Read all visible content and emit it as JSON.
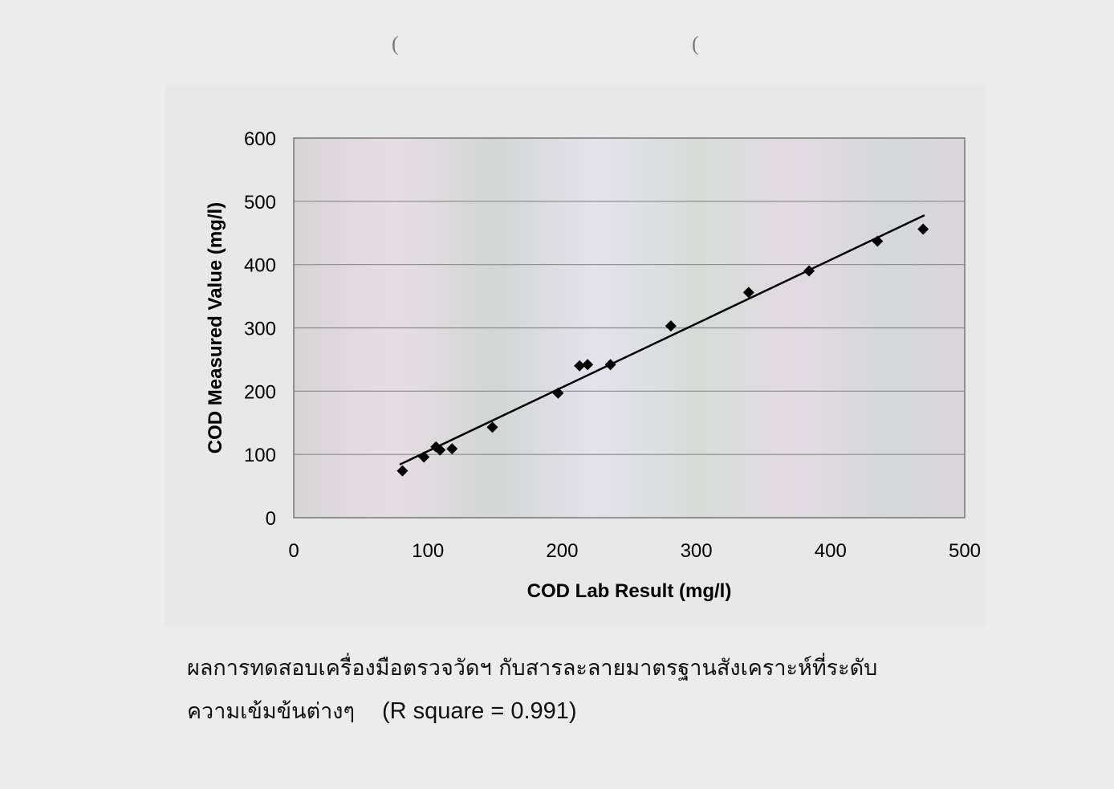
{
  "chart_data": {
    "type": "scatter",
    "xlabel": "COD Lab Result (mg/l)",
    "ylabel": "COD Measured Value (mg/l)",
    "xlim": [
      0,
      500
    ],
    "ylim": [
      0,
      600
    ],
    "xticks": [
      "0",
      "100",
      "200",
      "300",
      "400",
      "500"
    ],
    "yticks": [
      "0",
      "100",
      "200",
      "300",
      "400",
      "500",
      "600"
    ],
    "grid": "horizontal",
    "legend": "none",
    "marker": "diamond",
    "marker_color": "#000000",
    "points": [
      {
        "x": 81,
        "y": 74
      },
      {
        "x": 97,
        "y": 96
      },
      {
        "x": 106,
        "y": 112
      },
      {
        "x": 109,
        "y": 107
      },
      {
        "x": 118,
        "y": 109
      },
      {
        "x": 148,
        "y": 143
      },
      {
        "x": 197,
        "y": 197
      },
      {
        "x": 213,
        "y": 240
      },
      {
        "x": 219,
        "y": 242
      },
      {
        "x": 236,
        "y": 242
      },
      {
        "x": 281,
        "y": 303
      },
      {
        "x": 339,
        "y": 356
      },
      {
        "x": 384,
        "y": 390
      },
      {
        "x": 435,
        "y": 437
      },
      {
        "x": 469,
        "y": 456
      }
    ],
    "trendline": {
      "x": [
        79,
        470
      ],
      "y": [
        84,
        478
      ]
    }
  },
  "caption": {
    "line1": "ผลการทดสอบเครื่องมือตรวจวัดฯ กับสารละลายมาตรฐานสังเคราะห์ที่ระดับ",
    "line2": "ความเข้มข้นต่างๆ",
    "r_square": "(R square = 0.991)"
  }
}
